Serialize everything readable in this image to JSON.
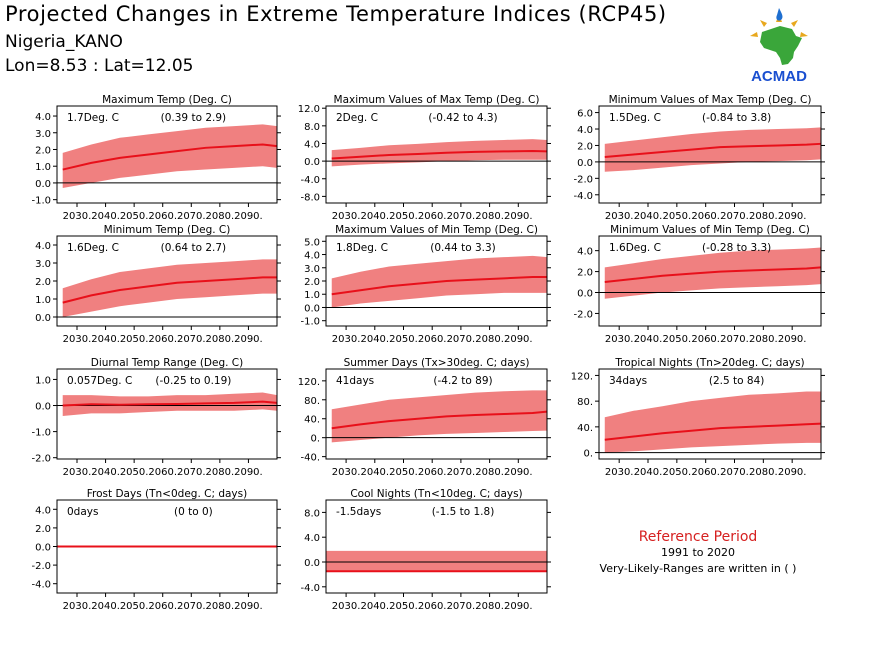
{
  "header": {
    "title": "Projected Changes in Extreme Temperature Indices (RCP45)",
    "location": "Nigeria_KANO",
    "coords": "Lon=8.53 : Lat=12.05"
  },
  "logo": {
    "text": "ACMAD",
    "icon": "africa-map-logo"
  },
  "reference": {
    "title": "Reference Period",
    "years": "1991 to 2020",
    "note": "Very-Likely-Ranges are written in ( )"
  },
  "colors": {
    "band": "#f08080",
    "line": "#e8101a",
    "axis": "#000000",
    "reference_text": "#d62020"
  },
  "chart_data": [
    {
      "type": "line",
      "title": "Maximum Temp (Deg. C)",
      "summary": "1.7Deg. C",
      "range": "(0.39 to 2.9)",
      "x_range": [
        2023,
        2100
      ],
      "ylim": [
        -1.2,
        4.6
      ],
      "yticks": [
        "4.0",
        "3.0",
        "2.0",
        "1.0",
        "0.0",
        "-1.0"
      ],
      "xticks": [
        "2030.",
        "2040.",
        "2050.",
        "2060.",
        "2070.",
        "2080.",
        "2090."
      ],
      "x": [
        2025,
        2035,
        2045,
        2055,
        2065,
        2075,
        2085,
        2095,
        2100
      ],
      "median": [
        0.8,
        1.2,
        1.5,
        1.7,
        1.9,
        2.1,
        2.2,
        2.3,
        2.2
      ],
      "lower": [
        -0.3,
        0.0,
        0.3,
        0.5,
        0.7,
        0.8,
        0.9,
        1.0,
        0.9
      ],
      "upper": [
        1.8,
        2.3,
        2.7,
        2.9,
        3.1,
        3.3,
        3.4,
        3.5,
        3.4
      ]
    },
    {
      "type": "line",
      "title": "Maximum Values of Max Temp (Deg. C)",
      "summary": "2Deg. C",
      "range": "(-0.42 to 4.3)",
      "x_range": [
        2023,
        2100
      ],
      "ylim": [
        -9.5,
        12.5
      ],
      "yticks": [
        "12.0",
        "8.0",
        "4.0",
        "0.0",
        "-4.0",
        "-8.0"
      ],
      "xticks": [
        "2030.",
        "2040.",
        "2050.",
        "2060.",
        "2070.",
        "2080.",
        "2090."
      ],
      "x": [
        2025,
        2035,
        2045,
        2055,
        2065,
        2075,
        2085,
        2095,
        2100
      ],
      "median": [
        0.6,
        1.0,
        1.4,
        1.6,
        1.9,
        2.1,
        2.2,
        2.3,
        2.2
      ],
      "lower": [
        -1.2,
        -0.8,
        -0.5,
        -0.3,
        0.0,
        0.2,
        0.3,
        0.3,
        0.3
      ],
      "upper": [
        2.5,
        3.0,
        3.6,
        3.9,
        4.3,
        4.6,
        4.8,
        5.0,
        4.8
      ]
    },
    {
      "type": "line",
      "title": "Minimum Values of Max Temp (Deg. C)",
      "summary": "1.5Deg. C",
      "range": "(-0.84 to 3.8)",
      "x_range": [
        2023,
        2100
      ],
      "ylim": [
        -5.0,
        6.8
      ],
      "yticks": [
        "6.0",
        "4.0",
        "2.0",
        "0.0",
        "-2.0",
        "-4.0"
      ],
      "xticks": [
        "2030.",
        "2040.",
        "2050.",
        "2060.",
        "2070.",
        "2080.",
        "2090."
      ],
      "x": [
        2025,
        2035,
        2045,
        2055,
        2065,
        2075,
        2085,
        2095,
        2100
      ],
      "median": [
        0.6,
        0.9,
        1.2,
        1.5,
        1.8,
        1.9,
        2.0,
        2.1,
        2.2
      ],
      "lower": [
        -1.2,
        -1.0,
        -0.7,
        -0.4,
        -0.2,
        0.0,
        0.1,
        0.2,
        0.3
      ],
      "upper": [
        2.2,
        2.6,
        3.0,
        3.4,
        3.7,
        3.9,
        4.0,
        4.1,
        4.2
      ]
    },
    {
      "type": "line",
      "title": "Minimum Temp (Deg. C)",
      "summary": "1.6Deg. C",
      "range": "(0.64 to 2.7)",
      "x_range": [
        2023,
        2100
      ],
      "ylim": [
        -0.5,
        4.5
      ],
      "yticks": [
        "4.0",
        "3.0",
        "2.0",
        "1.0",
        "0.0"
      ],
      "xticks": [
        "2030.",
        "2040.",
        "2050.",
        "2060.",
        "2070.",
        "2080.",
        "2090."
      ],
      "x": [
        2025,
        2035,
        2045,
        2055,
        2065,
        2075,
        2085,
        2095,
        2100
      ],
      "median": [
        0.8,
        1.2,
        1.5,
        1.7,
        1.9,
        2.0,
        2.1,
        2.2,
        2.2
      ],
      "lower": [
        0.0,
        0.3,
        0.6,
        0.8,
        1.0,
        1.1,
        1.2,
        1.3,
        1.3
      ],
      "upper": [
        1.6,
        2.1,
        2.5,
        2.7,
        2.9,
        3.0,
        3.1,
        3.2,
        3.2
      ]
    },
    {
      "type": "line",
      "title": "Maximum Values of Min Temp (Deg. C)",
      "summary": "1.8Deg. C",
      "range": "(0.44 to 3.3)",
      "x_range": [
        2023,
        2100
      ],
      "ylim": [
        -1.4,
        5.4
      ],
      "yticks": [
        "5.0",
        "4.0",
        "3.0",
        "2.0",
        "1.0",
        "0.0",
        "-1.0"
      ],
      "xticks": [
        "2030.",
        "2040.",
        "2050.",
        "2060.",
        "2070.",
        "2080.",
        "2090."
      ],
      "x": [
        2025,
        2035,
        2045,
        2055,
        2065,
        2075,
        2085,
        2095,
        2100
      ],
      "median": [
        1.0,
        1.3,
        1.6,
        1.8,
        2.0,
        2.1,
        2.2,
        2.3,
        2.3
      ],
      "lower": [
        0.0,
        0.3,
        0.5,
        0.7,
        0.9,
        1.0,
        1.1,
        1.1,
        1.1
      ],
      "upper": [
        2.2,
        2.7,
        3.1,
        3.3,
        3.5,
        3.7,
        3.8,
        3.9,
        3.8
      ]
    },
    {
      "type": "line",
      "title": "Minimum Values of Min Temp (Deg. C)",
      "summary": "1.6Deg. C",
      "range": "(-0.28 to 3.3)",
      "x_range": [
        2023,
        2100
      ],
      "ylim": [
        -3.2,
        5.4
      ],
      "yticks": [
        "4.0",
        "2.0",
        "0.0",
        "-2.0"
      ],
      "xticks": [
        "2030.",
        "2040.",
        "2050.",
        "2060.",
        "2070.",
        "2080.",
        "2090."
      ],
      "x": [
        2025,
        2035,
        2045,
        2055,
        2065,
        2075,
        2085,
        2095,
        2100
      ],
      "median": [
        1.0,
        1.3,
        1.6,
        1.8,
        2.0,
        2.1,
        2.2,
        2.3,
        2.4
      ],
      "lower": [
        -0.6,
        -0.3,
        0.0,
        0.2,
        0.4,
        0.5,
        0.6,
        0.7,
        0.8
      ],
      "upper": [
        2.4,
        2.8,
        3.2,
        3.5,
        3.8,
        4.0,
        4.1,
        4.2,
        4.3
      ]
    },
    {
      "type": "line",
      "title": "Diurnal Temp Range (Deg. C)",
      "summary": "0.057Deg. C",
      "range": "(-0.25 to 0.19)",
      "x_range": [
        2023,
        2100
      ],
      "ylim": [
        -2.05,
        1.4
      ],
      "yticks": [
        "1.0",
        "0.0",
        "-1.0",
        "-2.0"
      ],
      "xticks": [
        "2030.",
        "2040.",
        "2050.",
        "2060.",
        "2070.",
        "2080.",
        "2090."
      ],
      "x": [
        2025,
        2035,
        2045,
        2055,
        2065,
        2075,
        2085,
        2095,
        2100
      ],
      "median": [
        0.0,
        0.05,
        0.03,
        0.05,
        0.06,
        0.08,
        0.1,
        0.15,
        0.1
      ],
      "lower": [
        -0.4,
        -0.3,
        -0.3,
        -0.25,
        -0.2,
        -0.2,
        -0.2,
        -0.15,
        -0.2
      ],
      "upper": [
        0.4,
        0.4,
        0.35,
        0.35,
        0.4,
        0.4,
        0.45,
        0.5,
        0.4
      ]
    },
    {
      "type": "line",
      "title": "Summer Days (Tx>30deg. C; days)",
      "summary": "41days",
      "range": "(-4.2 to 89)",
      "x_range": [
        2023,
        2100
      ],
      "ylim": [
        -45,
        145
      ],
      "yticks": [
        "120.",
        "80.",
        "40.",
        "0.",
        "-40."
      ],
      "xticks": [
        "2030.",
        "2040.",
        "2050.",
        "2060.",
        "2070.",
        "2080.",
        "2090."
      ],
      "x": [
        2025,
        2035,
        2045,
        2055,
        2065,
        2075,
        2085,
        2095,
        2100
      ],
      "median": [
        20,
        28,
        35,
        40,
        45,
        48,
        50,
        52,
        55
      ],
      "lower": [
        -10,
        -5,
        0,
        5,
        8,
        10,
        12,
        14,
        15
      ],
      "upper": [
        60,
        70,
        80,
        85,
        90,
        95,
        98,
        100,
        100
      ]
    },
    {
      "type": "line",
      "title": "Tropical Nights (Tn>20deg. C; days)",
      "summary": "34days",
      "range": "(2.5 to 84)",
      "x_range": [
        2023,
        2100
      ],
      "ylim": [
        -10,
        130
      ],
      "yticks": [
        "120.",
        "80.",
        "40.",
        "0."
      ],
      "xticks": [
        "2030.",
        "2040.",
        "2050.",
        "2060.",
        "2070.",
        "2080.",
        "2090."
      ],
      "x": [
        2025,
        2035,
        2045,
        2055,
        2065,
        2075,
        2085,
        2095,
        2100
      ],
      "median": [
        20,
        25,
        30,
        34,
        38,
        40,
        42,
        44,
        45
      ],
      "lower": [
        0,
        2,
        5,
        8,
        10,
        12,
        14,
        15,
        15
      ],
      "upper": [
        55,
        65,
        72,
        80,
        85,
        90,
        92,
        95,
        95
      ]
    },
    {
      "type": "line",
      "title": "Frost Days (Tn<0deg. C; days)",
      "summary": "0days",
      "range": "(0 to 0)",
      "x_range": [
        2023,
        2100
      ],
      "ylim": [
        -5.0,
        5.0
      ],
      "yticks": [
        "4.0",
        "2.0",
        "0.0",
        "-2.0",
        "-4.0"
      ],
      "xticks": [
        "2030.",
        "2040.",
        "2050.",
        "2060.",
        "2070.",
        "2080.",
        "2090."
      ],
      "x": [
        2023,
        2100
      ],
      "median": [
        0,
        0
      ],
      "lower": [
        0,
        0
      ],
      "upper": [
        0,
        0
      ]
    },
    {
      "type": "line",
      "title": "Cool Nights (Tn<10deg. C; days)",
      "summary": "-1.5days",
      "range": "(-1.5 to 1.8)",
      "x_range": [
        2023,
        2100
      ],
      "ylim": [
        -5.0,
        10.0
      ],
      "yticks": [
        "8.0",
        "4.0",
        "0.0",
        "-4.0"
      ],
      "xticks": [
        "2030.",
        "2040.",
        "2050.",
        "2060.",
        "2070.",
        "2080.",
        "2090."
      ],
      "x": [
        2023,
        2100
      ],
      "median": [
        -1.5,
        -1.5
      ],
      "lower": [
        -1.5,
        -1.5
      ],
      "upper": [
        1.8,
        1.8
      ]
    }
  ]
}
